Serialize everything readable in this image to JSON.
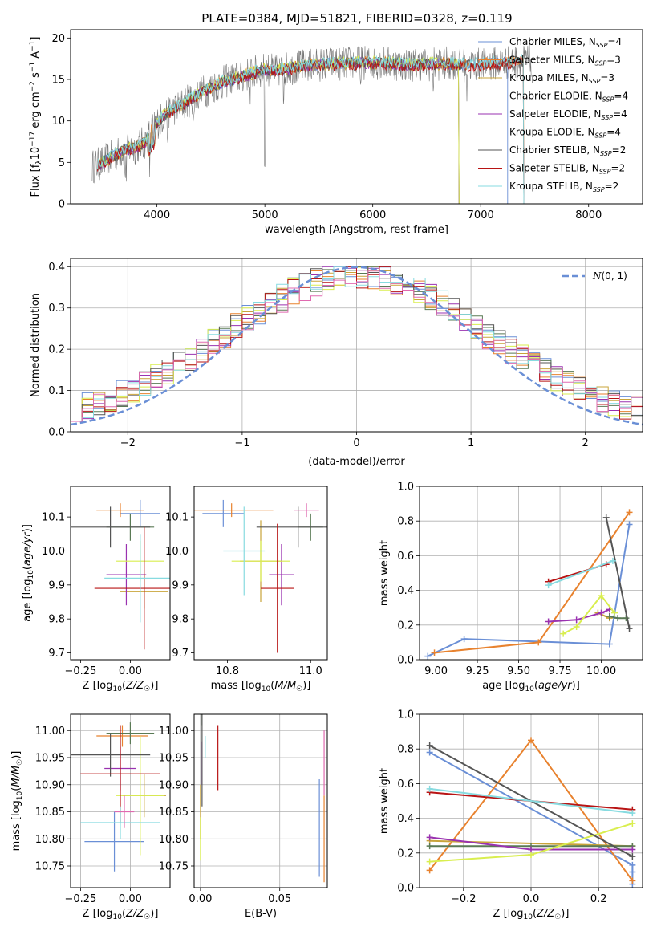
{
  "figure_title": "PLATE=0384, MJD=51821, FIBERID=0328, z=0.119",
  "colors": {
    "Chabrier MILES": "#6a8fd6",
    "Salpeter MILES": "#e8822e",
    "Kroupa MILES": "#c9a43a",
    "Chabrier ELODIE": "#5a7a55",
    "Salpeter ELODIE": "#9a32b0",
    "Kroupa ELODIE": "#d9ee4f",
    "Chabrier STELIB": "#555555",
    "Salpeter STELIB": "#b81414",
    "Kroupa STELIB": "#87dbe0"
  },
  "chart_data": [
    {
      "id": "spectrum",
      "type": "line",
      "xlabel": "wavelength [Angstrom, rest frame]",
      "ylabel": "Flux [f_λ 10^-17 erg cm^-2 s^-1 A^-1]",
      "xlim": [
        3200,
        8500
      ],
      "ylim": [
        0,
        21
      ],
      "xticks": [
        4000,
        5000,
        6000,
        7000,
        8000
      ],
      "yticks": [
        0,
        5,
        10,
        15,
        20
      ],
      "grid": false,
      "legend_position": "top-right",
      "data_continuum": [
        [
          3400,
          4.5
        ],
        [
          3500,
          5.0
        ],
        [
          3600,
          5.8
        ],
        [
          3700,
          6.5
        ],
        [
          3800,
          6.8
        ],
        [
          3900,
          7.5
        ],
        [
          3950,
          9.0
        ],
        [
          4000,
          9.8
        ],
        [
          4100,
          11.0
        ],
        [
          4200,
          11.8
        ],
        [
          4300,
          12.5
        ],
        [
          4400,
          13.3
        ],
        [
          4500,
          14.0
        ],
        [
          4600,
          14.6
        ],
        [
          4700,
          15.0
        ],
        [
          4800,
          15.4
        ],
        [
          4900,
          15.8
        ],
        [
          5000,
          16.2
        ],
        [
          5100,
          16.0
        ],
        [
          5200,
          16.3
        ],
        [
          5300,
          16.5
        ],
        [
          5400,
          16.7
        ],
        [
          5500,
          16.8
        ],
        [
          5600,
          16.9
        ],
        [
          5700,
          16.9
        ],
        [
          5800,
          17.0
        ],
        [
          5900,
          17.0
        ],
        [
          6000,
          17.0
        ],
        [
          6100,
          17.0
        ],
        [
          6200,
          16.9
        ],
        [
          6300,
          16.8
        ],
        [
          6400,
          16.8
        ],
        [
          6500,
          16.8
        ],
        [
          6600,
          16.9
        ],
        [
          6700,
          16.9
        ],
        [
          6800,
          16.8
        ],
        [
          6900,
          16.7
        ],
        [
          7000,
          16.8
        ],
        [
          7100,
          16.9
        ],
        [
          7200,
          17.0
        ],
        [
          7300,
          17.1
        ],
        [
          7400,
          17.2
        ],
        [
          7500,
          17.4
        ]
      ],
      "series": [
        {
          "name": "Chabrier MILES, N_SSP=4",
          "color": "#6a8fd6",
          "x_range": [
            3450,
            7250
          ],
          "offset": 0.0
        },
        {
          "name": "Salpeter MILES, N_SSP=3",
          "color": "#e8822e",
          "x_range": [
            3700,
            7400
          ],
          "offset": 0.1
        },
        {
          "name": "Kroupa MILES, N_SSP=3",
          "color": "#c9a43a",
          "x_range": [
            3450,
            6800
          ],
          "offset": -0.1
        },
        {
          "name": "Chabrier ELODIE, N_SSP=4",
          "color": "#5a7a55",
          "x_range": [
            3450,
            6800
          ],
          "offset": 0.05
        },
        {
          "name": "Salpeter ELODIE, N_SSP=4",
          "color": "#9a32b0",
          "x_range": [
            3450,
            6800
          ],
          "offset": -0.05
        },
        {
          "name": "Kroupa ELODIE, N_SSP=4",
          "color": "#d9ee4f",
          "x_range": [
            3450,
            6800
          ],
          "offset": 0.15
        },
        {
          "name": "Chabrier STELIB, N_SSP=2",
          "color": "#555555",
          "x_range": [
            3450,
            7400
          ],
          "offset": 0.0
        },
        {
          "name": "Salpeter STELIB, N_SSP=2",
          "color": "#b81414",
          "x_range": [
            3450,
            7400
          ],
          "offset": -0.15
        },
        {
          "name": "Kroupa STELIB, N_SSP=2",
          "color": "#87dbe0",
          "x_range": [
            3450,
            7400
          ],
          "offset": 0.2
        }
      ]
    },
    {
      "id": "residuals",
      "type": "area",
      "xlabel": "(data-model)/error",
      "ylabel": "Normed distribution",
      "xlim": [
        -2.5,
        2.5
      ],
      "ylim": [
        0,
        0.42
      ],
      "xticks": [
        -2,
        -1,
        0,
        1,
        2
      ],
      "yticks": [
        0.0,
        0.1,
        0.2,
        0.3,
        0.4
      ],
      "grid": true,
      "legend_position": "top-right",
      "gaussian": {
        "name": "N(0,1)",
        "color": "#6a8fd6"
      }
    },
    {
      "id": "age_vs_Z",
      "type": "scatter",
      "xlabel": "Z [log10(Z/Z☉)]",
      "ylabel": "age [log10(age/yr)]",
      "xlim": [
        -0.3,
        0.2
      ],
      "ylim": [
        9.68,
        10.19
      ],
      "xticks": [
        -0.25,
        0.0
      ],
      "yticks": [
        9.7,
        9.8,
        9.9,
        10.0,
        10.1
      ],
      "grid": false,
      "points": [
        {
          "color": "#6a8fd6",
          "x": 0.05,
          "y": 10.11,
          "xerr": 0.1,
          "yerr": 0.04
        },
        {
          "color": "#e8822e",
          "x": -0.05,
          "y": 10.12,
          "xerr": 0.12,
          "yerr": 0.02
        },
        {
          "color": "#c9a43a",
          "x": 0.07,
          "y": 9.88,
          "xerr": 0.12,
          "yerr": 0.05
        },
        {
          "color": "#5a7a55",
          "x": 0.0,
          "y": 10.07,
          "xerr": 0.12,
          "yerr": 0.04
        },
        {
          "color": "#9a32b0",
          "x": -0.02,
          "y": 9.93,
          "xerr": 0.1,
          "yerr": 0.09
        },
        {
          "color": "#d9ee4f",
          "x": 0.05,
          "y": 9.97,
          "xerr": 0.12,
          "yerr": 0.06
        },
        {
          "color": "#555555",
          "x": -0.1,
          "y": 10.07,
          "xerr": 0.2,
          "yerr": 0.06
        },
        {
          "color": "#b81414",
          "x": 0.07,
          "y": 9.89,
          "xerr": 0.25,
          "yerr": 0.18
        },
        {
          "color": "#87dbe0",
          "x": 0.05,
          "y": 9.92,
          "xerr": 0.18,
          "yerr": 0.13
        }
      ]
    },
    {
      "id": "age_vs_mass",
      "type": "scatter",
      "xlabel": "mass [log10(M/M☉)]",
      "ylabel": "",
      "xlim": [
        10.72,
        11.04
      ],
      "ylim": [
        9.68,
        10.19
      ],
      "xticks": [
        10.8,
        11.0
      ],
      "yticks": [
        9.7,
        9.8,
        9.9,
        10.0,
        10.1
      ],
      "grid": false,
      "points": [
        {
          "color": "#6a8fd6",
          "x": 10.79,
          "y": 10.11,
          "xerr": 0.05,
          "yerr": 0.04
        },
        {
          "color": "#e8822e",
          "x": 10.81,
          "y": 10.12,
          "xerr": 0.1,
          "yerr": 0.02
        },
        {
          "color": "#c9a43a",
          "x": 10.88,
          "y": 9.97,
          "xerr": 0.05,
          "yerr": 0.12
        },
        {
          "color": "#5a7a55",
          "x": 11.0,
          "y": 10.07,
          "xerr": 0.03,
          "yerr": 0.04
        },
        {
          "color": "#9a32b0",
          "x": 10.93,
          "y": 9.93,
          "xerr": 0.03,
          "yerr": 0.09
        },
        {
          "color": "#d9ee4f",
          "x": 10.88,
          "y": 9.97,
          "xerr": 0.07,
          "yerr": 0.06
        },
        {
          "color": "#555555",
          "x": 10.97,
          "y": 10.07,
          "xerr": 0.1,
          "yerr": 0.06
        },
        {
          "color": "#b81414",
          "x": 10.92,
          "y": 9.89,
          "xerr": 0.04,
          "yerr": 0.19
        },
        {
          "color": "#87dbe0",
          "x": 10.84,
          "y": 10.0,
          "xerr": 0.05,
          "yerr": 0.13
        },
        {
          "color": "#e06ab0",
          "x": 10.99,
          "y": 10.12,
          "xerr": 0.03,
          "yerr": 0.02
        }
      ]
    },
    {
      "id": "weight_vs_age",
      "type": "line",
      "xlabel": "age [log10(age/yr)]",
      "ylabel": "mass weight",
      "xlim": [
        8.9,
        10.25
      ],
      "ylim": [
        0.0,
        1.0
      ],
      "xticks": [
        9.0,
        9.25,
        9.5,
        9.75,
        10.0
      ],
      "yticks": [
        0.0,
        0.2,
        0.4,
        0.6,
        0.8,
        1.0
      ],
      "grid": true,
      "series": [
        {
          "color": "#6a8fd6",
          "x": [
            8.95,
            9.17,
            10.05,
            10.17
          ],
          "y": [
            0.02,
            0.12,
            0.09,
            0.78
          ]
        },
        {
          "color": "#e8822e",
          "x": [
            8.99,
            9.62,
            10.17
          ],
          "y": [
            0.04,
            0.1,
            0.85
          ]
        },
        {
          "color": "#c9a43a",
          "x": [
            9.98,
            10.05
          ],
          "y": [
            0.27,
            0.24
          ]
        },
        {
          "color": "#5a7a55",
          "x": [
            10.05,
            10.1,
            10.15
          ],
          "y": [
            0.25,
            0.24,
            0.24
          ]
        },
        {
          "color": "#9a32b0",
          "x": [
            9.68,
            9.85,
            10.0,
            10.05
          ],
          "y": [
            0.22,
            0.23,
            0.27,
            0.29
          ]
        },
        {
          "color": "#d9ee4f",
          "x": [
            9.77,
            9.85,
            10.0,
            10.08
          ],
          "y": [
            0.15,
            0.19,
            0.37,
            0.27
          ]
        },
        {
          "color": "#555555",
          "x": [
            10.03,
            10.17
          ],
          "y": [
            0.82,
            0.18
          ]
        },
        {
          "color": "#b81414",
          "x": [
            9.68,
            10.03
          ],
          "y": [
            0.45,
            0.55
          ]
        },
        {
          "color": "#87dbe0",
          "x": [
            9.68,
            10.07
          ],
          "y": [
            0.43,
            0.57
          ]
        }
      ]
    },
    {
      "id": "mass_vs_Z",
      "type": "scatter",
      "xlabel": "Z [log10(Z/Z☉)]",
      "ylabel": "mass [log10(M/M☉)]",
      "xlim": [
        -0.3,
        0.2
      ],
      "ylim": [
        10.71,
        11.03
      ],
      "xticks": [
        -0.25,
        0.0
      ],
      "yticks": [
        10.75,
        10.8,
        10.85,
        10.9,
        10.95,
        11.0
      ],
      "grid": true,
      "points": [
        {
          "color": "#6a8fd6",
          "x": -0.08,
          "y": 10.795,
          "xerr": 0.15,
          "yerr": 0.055
        },
        {
          "color": "#e8822e",
          "x": -0.04,
          "y": 10.99,
          "xerr": 0.13,
          "yerr": 0.02
        },
        {
          "color": "#c9a43a",
          "x": 0.07,
          "y": 10.88,
          "xerr": 0.11,
          "yerr": 0.04
        },
        {
          "color": "#5a7a55",
          "x": 0.0,
          "y": 10.995,
          "xerr": 0.12,
          "yerr": 0.02
        },
        {
          "color": "#9a32b0",
          "x": -0.05,
          "y": 10.93,
          "xerr": 0.08,
          "yerr": 0.04
        },
        {
          "color": "#d9ee4f",
          "x": 0.05,
          "y": 10.88,
          "xerr": 0.12,
          "yerr": 0.11
        },
        {
          "color": "#555555",
          "x": -0.1,
          "y": 10.955,
          "xerr": 0.2,
          "yerr": 0.04
        },
        {
          "color": "#b81414",
          "x": -0.05,
          "y": 10.92,
          "xerr": 0.2,
          "yerr": 0.09
        },
        {
          "color": "#87dbe0",
          "x": -0.05,
          "y": 10.83,
          "xerr": 0.2,
          "yerr": 0.03
        },
        {
          "color": "#e06ab0",
          "x": -0.03,
          "y": 10.85,
          "xerr": 0.05,
          "yerr": 0.03
        }
      ]
    },
    {
      "id": "mass_vs_EBV",
      "type": "scatter",
      "xlabel": "E(B-V)",
      "ylabel": "",
      "xlim": [
        -0.004,
        0.08
      ],
      "ylim": [
        10.71,
        11.03
      ],
      "xticks": [
        0.0,
        0.05
      ],
      "yticks": [
        10.75,
        10.8,
        10.85,
        10.9,
        10.95,
        11.0
      ],
      "grid": true,
      "points": [
        {
          "color": "#6a8fd6",
          "x": 0.075,
          "y": 10.82,
          "xerr": 0.0,
          "yerr": 0.09
        },
        {
          "color": "#e8822e",
          "x": 0.078,
          "y": 10.8,
          "xerr": 0.0,
          "yerr": 0.08
        },
        {
          "color": "#c9a43a",
          "x": 0.0,
          "y": 10.85,
          "xerr": 0.0,
          "yerr": 0.05
        },
        {
          "color": "#5a7a55",
          "x": 0.001,
          "y": 11.02,
          "xerr": 0.0,
          "yerr": 0.01
        },
        {
          "color": "#9a32b0",
          "x": 0.001,
          "y": 10.94,
          "xerr": 0.0,
          "yerr": 0.04
        },
        {
          "color": "#d9ee4f",
          "x": 0.0,
          "y": 10.8,
          "xerr": 0.0,
          "yerr": 0.04
        },
        {
          "color": "#555555",
          "x": 0.001,
          "y": 10.95,
          "xerr": 0.0,
          "yerr": 0.09
        },
        {
          "color": "#b81414",
          "x": 0.011,
          "y": 10.95,
          "xerr": 0.0,
          "yerr": 0.06
        },
        {
          "color": "#87dbe0",
          "x": 0.003,
          "y": 10.97,
          "xerr": 0.0,
          "yerr": 0.02
        },
        {
          "color": "#e06ab0",
          "x": 0.078,
          "y": 10.94,
          "xerr": 0.0,
          "yerr": 0.06
        }
      ]
    },
    {
      "id": "weight_vs_Z",
      "type": "line",
      "xlabel": "Z [log10(Z/Z☉)]",
      "ylabel": "mass weight",
      "xlim": [
        -0.33,
        0.33
      ],
      "ylim": [
        0.0,
        1.0
      ],
      "xticks": [
        -0.2,
        0.0,
        0.2
      ],
      "yticks": [
        0.0,
        0.2,
        0.4,
        0.6,
        0.8,
        1.0
      ],
      "grid": true,
      "series": [
        {
          "color": "#6a8fd6",
          "x": [
            -0.3,
            0.3,
            0.3,
            0.3
          ],
          "y": [
            0.78,
            0.13,
            0.09,
            0.02
          ]
        },
        {
          "color": "#e8822e",
          "x": [
            -0.3,
            0.0,
            0.3
          ],
          "y": [
            0.1,
            0.85,
            0.04
          ]
        },
        {
          "color": "#c9a43a",
          "x": [
            -0.3,
            0.3
          ],
          "y": [
            0.27,
            0.24
          ]
        },
        {
          "color": "#5a7a55",
          "x": [
            -0.3,
            0.0,
            0.3
          ],
          "y": [
            0.24,
            0.24,
            0.24
          ]
        },
        {
          "color": "#9a32b0",
          "x": [
            -0.3,
            0.0,
            0.3
          ],
          "y": [
            0.29,
            0.22,
            0.22
          ]
        },
        {
          "color": "#d9ee4f",
          "x": [
            -0.3,
            0.0,
            0.3
          ],
          "y": [
            0.15,
            0.19,
            0.37
          ]
        },
        {
          "color": "#555555",
          "x": [
            -0.3,
            0.3
          ],
          "y": [
            0.82,
            0.18
          ]
        },
        {
          "color": "#b81414",
          "x": [
            -0.3,
            0.3
          ],
          "y": [
            0.55,
            0.45
          ]
        },
        {
          "color": "#87dbe0",
          "x": [
            -0.3,
            0.3
          ],
          "y": [
            0.57,
            0.43
          ]
        }
      ]
    }
  ]
}
